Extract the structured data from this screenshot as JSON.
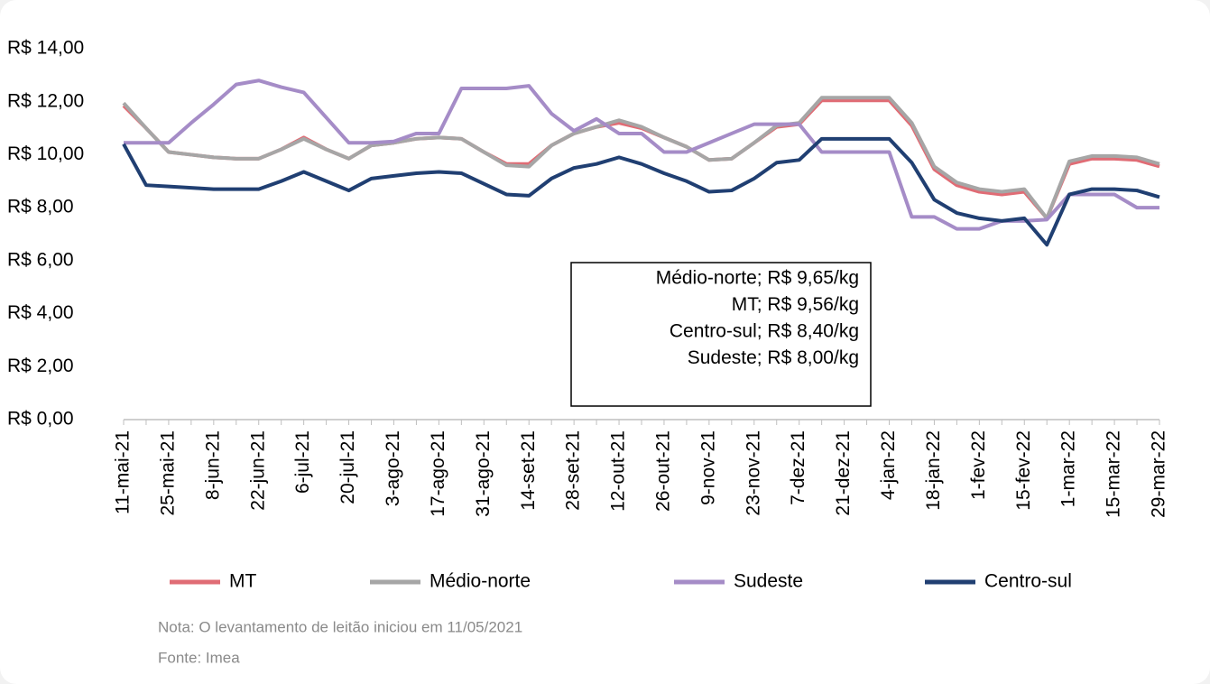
{
  "chart_data": {
    "type": "line",
    "categories": [
      "11-mai-21",
      null,
      "25-mai-21",
      null,
      "8-jun-21",
      null,
      "22-jun-21",
      null,
      "6-jul-21",
      null,
      "20-jul-21",
      null,
      "3-ago-21",
      null,
      "17-ago-21",
      null,
      "31-ago-21",
      null,
      "14-set-21",
      null,
      "28-set-21",
      null,
      "12-out-21",
      null,
      "26-out-21",
      null,
      "9-nov-21",
      null,
      "23-nov-21",
      null,
      "7-dez-21",
      null,
      "21-dez-21",
      null,
      "4-jan-22",
      null,
      "18-jan-22",
      null,
      "1-fev-22",
      null,
      "15-fev-22",
      null,
      "1-mar-22",
      null,
      "15-mar-22",
      null,
      "29-mar-22"
    ],
    "series": [
      {
        "name": "MT",
        "color": "#e06c75",
        "values": [
          11.85,
          11.0,
          10.1,
          10.0,
          9.9,
          9.85,
          9.85,
          10.2,
          10.65,
          10.2,
          9.85,
          10.35,
          10.45,
          10.6,
          10.65,
          10.6,
          10.1,
          9.65,
          9.65,
          10.35,
          10.8,
          11.05,
          11.2,
          11.0,
          10.65,
          10.3,
          9.8,
          9.85,
          10.45,
          11.05,
          11.15,
          12.05,
          12.05,
          12.05,
          12.05,
          11.1,
          9.45,
          8.85,
          8.6,
          8.5,
          8.6,
          7.6,
          9.65,
          9.85,
          9.85,
          9.8,
          9.56
        ]
      },
      {
        "name": "Médio-norte",
        "color": "#a6a6a6",
        "values": [
          11.95,
          11.0,
          10.1,
          10.0,
          9.9,
          9.85,
          9.85,
          10.2,
          10.6,
          10.2,
          9.85,
          10.35,
          10.45,
          10.6,
          10.65,
          10.6,
          10.1,
          9.6,
          9.55,
          10.35,
          10.8,
          11.05,
          11.3,
          11.05,
          10.65,
          10.3,
          9.8,
          9.85,
          10.45,
          11.1,
          11.2,
          12.15,
          12.15,
          12.15,
          12.15,
          11.2,
          9.55,
          8.95,
          8.7,
          8.6,
          8.7,
          7.6,
          9.75,
          9.95,
          9.95,
          9.9,
          9.65
        ]
      },
      {
        "name": "Sudeste",
        "color": "#a58cc7",
        "values": [
          10.45,
          10.45,
          10.45,
          11.2,
          11.9,
          12.65,
          12.8,
          12.55,
          12.35,
          11.4,
          10.45,
          10.45,
          10.5,
          10.8,
          10.8,
          12.5,
          12.5,
          12.5,
          12.6,
          11.55,
          10.9,
          11.35,
          10.8,
          10.8,
          10.1,
          10.1,
          10.45,
          10.8,
          11.15,
          11.15,
          11.15,
          10.1,
          10.1,
          10.1,
          10.1,
          7.65,
          7.65,
          7.2,
          7.2,
          7.5,
          7.5,
          7.55,
          8.5,
          8.5,
          8.5,
          8.0,
          8.0
        ]
      },
      {
        "name": "Centro-sul",
        "color": "#203f72",
        "values": [
          10.4,
          8.85,
          8.8,
          8.75,
          8.7,
          8.7,
          8.7,
          9.0,
          9.35,
          9.0,
          8.65,
          9.1,
          9.2,
          9.3,
          9.35,
          9.3,
          8.9,
          8.5,
          8.45,
          9.1,
          9.5,
          9.65,
          9.9,
          9.65,
          9.3,
          9.0,
          8.6,
          8.65,
          9.1,
          9.7,
          9.8,
          10.6,
          10.6,
          10.6,
          10.6,
          9.7,
          8.3,
          7.8,
          7.6,
          7.5,
          7.6,
          6.6,
          8.5,
          8.7,
          8.7,
          8.65,
          8.4
        ]
      }
    ],
    "ylim": [
      0,
      14
    ],
    "yticks": [
      {
        "value": 0,
        "label": "R$ 0,00"
      },
      {
        "value": 2,
        "label": "R$ 2,00"
      },
      {
        "value": 4,
        "label": "R$ 4,00"
      },
      {
        "value": 6,
        "label": "R$ 6,00"
      },
      {
        "value": 8,
        "label": "R$ 8,00"
      },
      {
        "value": 10,
        "label": "R$ 10,00"
      },
      {
        "value": 12,
        "label": "R$ 12,00"
      },
      {
        "value": 14,
        "label": "R$ 14,00"
      }
    ],
    "grid": false,
    "legend": "bottom",
    "annotation": [
      "Médio-norte; R$ 9,65/kg",
      "MT; R$ 9,56/kg",
      "Centro-sul; R$ 8,40/kg",
      "Sudeste; R$ 8,00/kg"
    ],
    "notes": [
      "Nota: O levantamento de leitão iniciou em 11/05/2021",
      "Fonte: Imea"
    ]
  }
}
